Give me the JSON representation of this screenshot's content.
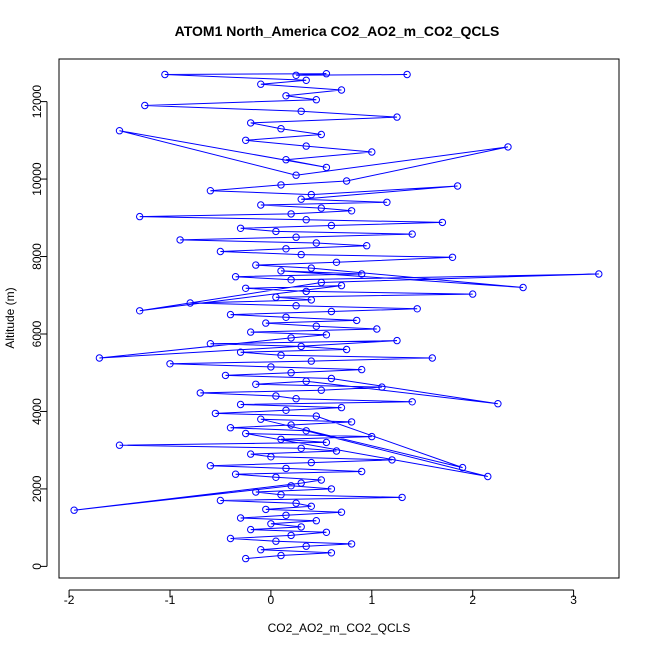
{
  "chart_data": {
    "type": "scatter",
    "title": "ATOM1 North_America CO2_AO2_m_CO2_QCLS",
    "xlabel": "CO2_AO2_m_CO2_QCLS",
    "ylabel": "Altitude (m)",
    "xlim": [
      -2.1,
      3.45
    ],
    "ylim": [
      -300,
      13100
    ],
    "x_ticks": [
      -2,
      -1,
      0,
      1,
      2,
      3
    ],
    "y_ticks": [
      0,
      2000,
      4000,
      6000,
      8000,
      10000,
      12000
    ],
    "x_tick_labels": [
      "-2",
      "-1",
      "0",
      "1",
      "2",
      "3"
    ],
    "y_tick_labels": [
      "0",
      "2000",
      "4000",
      "6000",
      "8000",
      "10000",
      "12000"
    ],
    "series_color": "#0000ff",
    "marker": "open-circle",
    "connected": true,
    "series": [
      {
        "x": [
          -0.25,
          0.1,
          0.6,
          -0.1,
          0.35,
          0.8,
          0.05,
          -0.4,
          0.2,
          0.55,
          -0.2,
          0.3,
          0.0,
          0.45,
          -0.3,
          0.15,
          0.7,
          -0.05,
          0.4,
          0.25,
          -0.5,
          1.3,
          0.1,
          -0.15,
          0.6,
          0.2,
          -1.95,
          0.3,
          0.5,
          0.05,
          -0.35,
          0.9,
          0.15,
          -0.6,
          0.4,
          1.2,
          0.0,
          -0.2,
          0.65,
          0.3,
          -1.5,
          0.55,
          0.1,
          1.0,
          -0.25,
          2.15,
          0.35,
          -0.4,
          0.2,
          0.8,
          -0.1,
          1.9,
          0.45,
          -0.55,
          0.15,
          0.7,
          -0.3,
          1.4,
          0.25,
          0.05,
          -0.7,
          0.5,
          1.1,
          -0.15,
          0.35,
          2.25,
          0.6,
          -0.45,
          0.2,
          0.9,
          0.0,
          -1.0,
          0.4,
          1.6,
          0.1,
          -0.3,
          0.75,
          0.3,
          -0.6,
          1.25,
          -1.7,
          0.2,
          0.55,
          -0.2,
          1.05,
          0.45,
          -0.05,
          0.85,
          0.15,
          -0.4,
          0.6,
          1.45,
          0.25,
          -0.8,
          0.4,
          0.05,
          2.0,
          0.35,
          -0.25,
          0.7,
          -1.3,
          0.5,
          3.25,
          0.2,
          -0.35,
          0.9,
          0.1,
          2.5,
          0.4,
          -0.15,
          0.65,
          1.8,
          0.3,
          -0.5,
          0.15,
          0.95,
          0.45,
          -0.9,
          0.25,
          1.4,
          0.05,
          -0.3,
          0.6,
          1.7,
          0.35,
          -1.3,
          0.2,
          0.8,
          0.5,
          -0.1,
          1.15,
          0.3,
          1.85,
          0.4,
          -0.6,
          0.1,
          0.75,
          2.35,
          0.25,
          -1.5,
          0.55,
          0.15,
          1.0,
          0.35,
          -0.25,
          0.5,
          0.1,
          -0.2,
          1.25,
          0.3,
          -1.25,
          0.45,
          0.15,
          0.7,
          -0.1,
          0.35,
          -1.05,
          0.55,
          0.25,
          1.35
        ],
        "y": [
          200,
          280,
          350,
          430,
          520,
          580,
          650,
          720,
          800,
          880,
          950,
          1020,
          1100,
          1180,
          1250,
          1320,
          1400,
          1470,
          1550,
          1630,
          1700,
          1780,
          1850,
          1920,
          2000,
          2080,
          1450,
          2150,
          2230,
          2300,
          2380,
          2450,
          2530,
          2600,
          2680,
          2750,
          2830,
          2900,
          2980,
          3050,
          3130,
          3200,
          3280,
          3350,
          3430,
          2320,
          3500,
          3580,
          3650,
          3730,
          3800,
          2550,
          3880,
          3950,
          4030,
          4100,
          4180,
          4250,
          4330,
          4400,
          4480,
          4550,
          4630,
          4700,
          4780,
          4200,
          4850,
          4930,
          5000,
          5080,
          5150,
          5230,
          5300,
          5380,
          5450,
          5530,
          5600,
          5680,
          5750,
          5830,
          5380,
          5900,
          5980,
          6050,
          6130,
          6200,
          6280,
          6350,
          6430,
          6500,
          6580,
          6650,
          6730,
          6800,
          6880,
          6950,
          7030,
          7100,
          7180,
          7250,
          6600,
          7330,
          7550,
          7400,
          7480,
          7550,
          7630,
          7200,
          7700,
          7780,
          7850,
          7980,
          8050,
          8130,
          8200,
          8280,
          8350,
          8430,
          8500,
          8580,
          8650,
          8730,
          8800,
          8880,
          8950,
          9030,
          9100,
          9180,
          9250,
          9330,
          9400,
          9480,
          9820,
          9600,
          9700,
          9850,
          9950,
          10830,
          10100,
          11250,
          10300,
          10500,
          10700,
          10850,
          11000,
          11150,
          11300,
          11450,
          11600,
          11750,
          11900,
          12050,
          12150,
          12300,
          12450,
          12550,
          12700,
          12720,
          12680,
          12700
        ]
      }
    ]
  }
}
